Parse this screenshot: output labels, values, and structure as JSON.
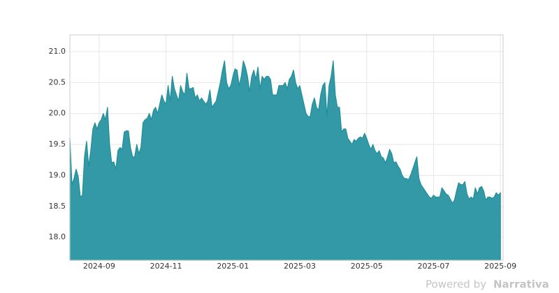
{
  "chart_data": {
    "type": "area",
    "color": "#3399a6",
    "line_color": "#1f8f99",
    "grid": true,
    "xlim": [
      -0.875,
      12.08
    ],
    "ylim": [
      17.63,
      21.27
    ],
    "xticks": [
      {
        "value": 0,
        "label": "2024-09"
      },
      {
        "value": 2,
        "label": "2024-11"
      },
      {
        "value": 4,
        "label": "2025-01"
      },
      {
        "value": 6,
        "label": "2025-03"
      },
      {
        "value": 8,
        "label": "2025-05"
      },
      {
        "value": 10,
        "label": "2025-07"
      },
      {
        "value": 12,
        "label": "2025-09"
      }
    ],
    "yticks": [
      {
        "value": 18,
        "label": "18.0"
      },
      18.5,
      {
        "value": 19,
        "label": "19.0"
      },
      19.5,
      {
        "value": 20,
        "label": "20.0"
      },
      20.5,
      {
        "value": 21,
        "label": "21.0"
      }
    ],
    "x": [
      -0.875,
      -0.8125,
      -0.75,
      -0.6875,
      -0.625,
      -0.5625,
      -0.5,
      -0.4375,
      -0.375,
      -0.3125,
      -0.25,
      -0.1875,
      -0.125,
      -0.0625,
      0,
      0.0625,
      0.125,
      0.1875,
      0.25,
      0.3125,
      0.375,
      0.4375,
      0.5,
      0.5625,
      0.625,
      0.6875,
      0.75,
      0.8125,
      0.875,
      0.9375,
      1,
      1.0625,
      1.125,
      1.1875,
      1.25,
      1.3125,
      1.375,
      1.4375,
      1.5,
      1.5625,
      1.625,
      1.6875,
      1.75,
      1.8125,
      1.875,
      1.9375,
      2,
      2.0625,
      2.125,
      2.1875,
      2.25,
      2.3125,
      2.375,
      2.4375,
      2.5,
      2.5625,
      2.625,
      2.6875,
      2.75,
      2.8125,
      2.875,
      2.9375,
      3,
      3.0625,
      3.125,
      3.1875,
      3.25,
      3.3125,
      3.375,
      3.4375,
      3.5,
      3.5625,
      3.625,
      3.6875,
      3.75,
      3.8125,
      3.875,
      3.9375,
      4,
      4.0625,
      4.125,
      4.1875,
      4.25,
      4.3125,
      4.375,
      4.4375,
      4.5,
      4.5625,
      4.625,
      4.6875,
      4.75,
      4.8125,
      4.875,
      4.9375,
      5,
      5.0625,
      5.125,
      5.1875,
      5.25,
      5.3125,
      5.375,
      5.4375,
      5.5,
      5.5625,
      5.625,
      5.6875,
      5.75,
      5.8125,
      5.875,
      5.9375,
      6,
      6.0625,
      6.125,
      6.1875,
      6.25,
      6.3125,
      6.375,
      6.4375,
      6.5,
      6.5625,
      6.625,
      6.6875,
      6.75,
      6.8125,
      6.875,
      6.9375,
      7,
      7.0625,
      7.125,
      7.1875,
      7.25,
      7.3125,
      7.375,
      7.4375,
      7.5,
      7.5625,
      7.625,
      7.6875,
      7.75,
      7.8125,
      7.875,
      7.9375,
      8,
      8.0625,
      8.125,
      8.1875,
      8.25,
      8.3125,
      8.375,
      8.4375,
      8.5,
      8.5625,
      8.625,
      8.6875,
      8.75,
      8.8125,
      8.875,
      8.9375,
      9,
      9.0625,
      9.125,
      9.1875,
      9.25,
      9.3125,
      9.375,
      9.4375,
      9.5,
      9.5625,
      9.625,
      9.6875,
      9.75,
      9.8125,
      9.875,
      9.9375,
      10,
      10.0625,
      10.125,
      10.1875,
      10.25,
      10.3125,
      10.375,
      10.4375,
      10.5,
      10.5625,
      10.625,
      10.6875,
      10.75,
      10.8125,
      10.875,
      10.9375,
      11,
      11.0625,
      11.125,
      11.1875,
      11.25,
      11.3125,
      11.375,
      11.4375,
      11.5,
      11.5625,
      11.625,
      11.6875,
      11.75,
      11.8125,
      11.875,
      11.9375,
      12
    ],
    "values": [
      19.6,
      18.85,
      18.95,
      19.1,
      18.98,
      18.65,
      18.68,
      19.3,
      19.55,
      19.15,
      19.4,
      19.75,
      19.85,
      19.75,
      19.85,
      19.9,
      20.0,
      19.9,
      20.1,
      19.5,
      19.2,
      19.22,
      19.1,
      19.4,
      19.45,
      19.42,
      19.7,
      19.72,
      19.72,
      19.45,
      19.3,
      19.3,
      19.5,
      19.35,
      19.45,
      19.85,
      19.9,
      19.92,
      20.0,
      19.9,
      20.05,
      20.1,
      20.0,
      20.15,
      20.3,
      20.2,
      20.15,
      20.45,
      20.2,
      20.6,
      20.4,
      20.3,
      20.2,
      20.45,
      20.35,
      20.3,
      20.65,
      20.4,
      20.4,
      20.42,
      20.25,
      20.3,
      20.2,
      20.25,
      20.2,
      20.15,
      20.2,
      20.38,
      20.1,
      20.15,
      20.2,
      20.35,
      20.5,
      20.7,
      20.85,
      20.5,
      20.4,
      20.45,
      20.6,
      20.72,
      20.7,
      20.45,
      20.6,
      20.85,
      20.75,
      20.6,
      20.35,
      20.6,
      20.7,
      20.55,
      20.75,
      20.4,
      20.6,
      20.55,
      20.6,
      20.6,
      20.55,
      20.3,
      20.3,
      20.3,
      20.45,
      20.45,
      20.45,
      20.5,
      20.4,
      20.55,
      20.6,
      20.7,
      20.5,
      20.4,
      20.45,
      20.3,
      20.15,
      20.0,
      19.95,
      19.95,
      20.15,
      20.25,
      20.1,
      20.05,
      20.3,
      20.45,
      20.5,
      19.95,
      20.45,
      20.6,
      20.85,
      20.3,
      20.1,
      20.1,
      19.7,
      19.75,
      19.75,
      19.6,
      19.55,
      19.5,
      19.58,
      19.55,
      19.6,
      19.62,
      19.6,
      19.68,
      19.6,
      19.5,
      19.42,
      19.5,
      19.4,
      19.35,
      19.4,
      19.3,
      19.28,
      19.2,
      19.3,
      19.42,
      19.35,
      19.2,
      19.22,
      19.15,
      19.1,
      19.0,
      18.95,
      18.95,
      18.93,
      19.0,
      19.1,
      19.2,
      19.3,
      18.95,
      18.85,
      18.8,
      18.75,
      18.7,
      18.65,
      18.63,
      18.68,
      18.65,
      18.65,
      18.65,
      18.8,
      18.75,
      18.7,
      18.68,
      18.62,
      18.55,
      18.6,
      18.75,
      18.88,
      18.85,
      18.85,
      18.9,
      18.7,
      18.62,
      18.65,
      18.62,
      18.8,
      18.7,
      18.8,
      18.82,
      18.75,
      18.6,
      18.65,
      18.65,
      18.63,
      18.65,
      18.72,
      18.68,
      18.72
    ]
  },
  "watermark": {
    "prefix": "Powered by",
    "brand": "Narrativa"
  }
}
